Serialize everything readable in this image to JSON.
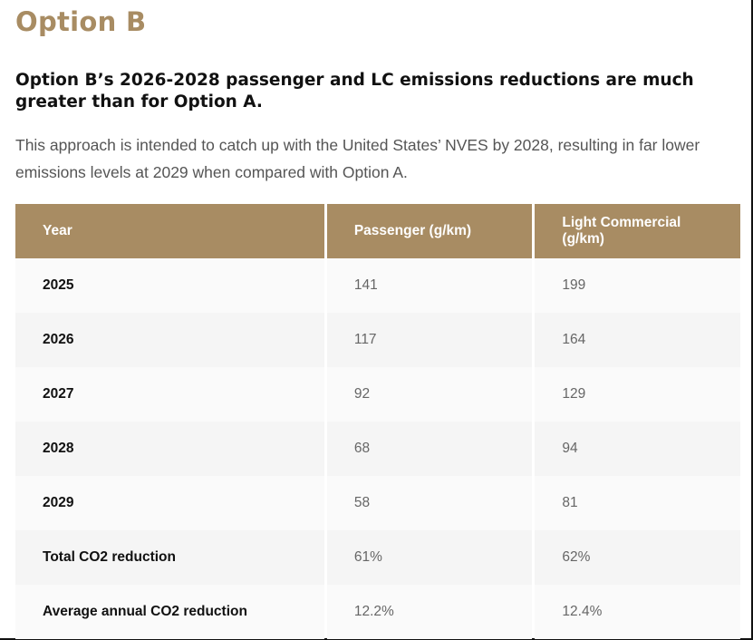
{
  "section": {
    "title": "Option B",
    "subheading": "Option B’s 2026-2028 passenger and LC emissions reductions are much greater than for Option A.",
    "intro": "This approach is intended to catch up with the United States’ NVES by 2028, resulting in far lower emissions levels at 2029 when compared with Option A."
  },
  "table": {
    "header_color": "#a88c63",
    "columns": [
      "Year",
      "Passenger (g/km)",
      "Light Commercial (g/km)"
    ],
    "rows": [
      {
        "label": "2025",
        "passenger": "141",
        "light_commercial": "199"
      },
      {
        "label": "2026",
        "passenger": "117",
        "light_commercial": "164"
      },
      {
        "label": "2027",
        "passenger": "92",
        "light_commercial": "129"
      },
      {
        "label": "2028",
        "passenger": "68",
        "light_commercial": "94"
      },
      {
        "label": "2029",
        "passenger": "58",
        "light_commercial": "81"
      },
      {
        "label": "Total CO2 reduction",
        "passenger": "61%",
        "light_commercial": "62%"
      },
      {
        "label": "Average annual CO2 reduction",
        "passenger": "12.2%",
        "light_commercial": "12.4%"
      }
    ]
  }
}
